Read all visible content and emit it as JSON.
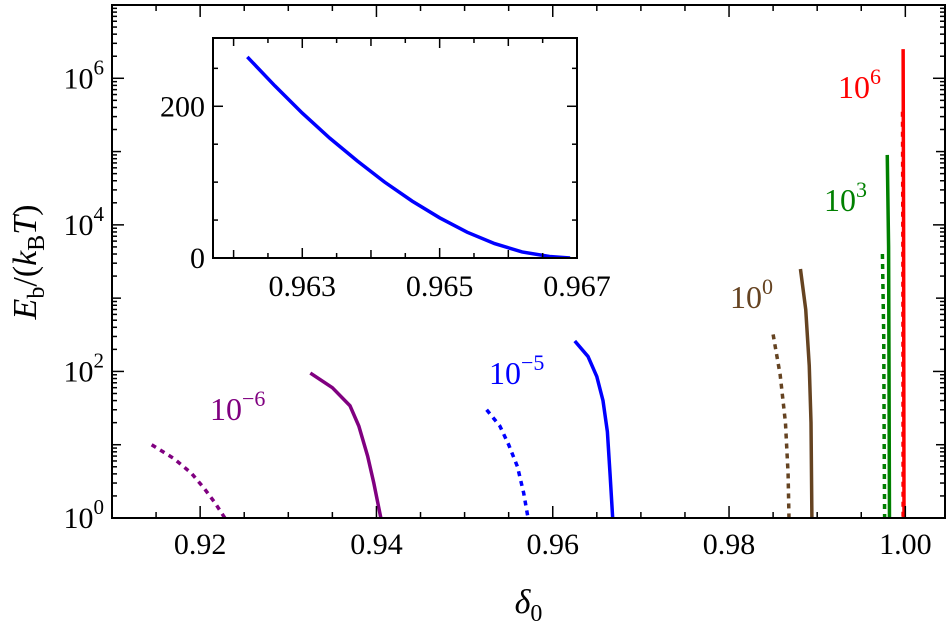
{
  "chart_data": [
    {
      "type": "line",
      "xlabel": "δ0",
      "ylabel": "Eb/(kBT)",
      "xlim": [
        0.91,
        1.0045
      ],
      "ylim": [
        1,
        10000000
      ],
      "yscale": "log",
      "grid": false,
      "x_ticks": [
        0.92,
        0.94,
        0.96,
        0.98,
        1.0
      ],
      "x_tick_labels": [
        "0.92",
        "0.94",
        "0.96",
        "0.98",
        "1.00"
      ],
      "y_ticks": [
        1,
        100,
        10000,
        1000000
      ],
      "y_tick_labels": [
        {
          "base": "10",
          "exp": "0"
        },
        {
          "base": "10",
          "exp": "2"
        },
        {
          "base": "10",
          "exp": "4"
        },
        {
          "base": "10",
          "exp": "6"
        }
      ],
      "series": [
        {
          "label_base": "10",
          "label_exp": "−6",
          "color": "#800080",
          "dash": false,
          "points": [
            [
              0.9325,
              95
            ],
            [
              0.935,
              60
            ],
            [
              0.937,
              34
            ],
            [
              0.938,
              18
            ],
            [
              0.939,
              7
            ],
            [
              0.9397,
              3
            ],
            [
              0.9405,
              1
            ]
          ]
        },
        {
          "color": "#800080",
          "dash": true,
          "points": [
            [
              0.9145,
              10
            ],
            [
              0.917,
              6.5
            ],
            [
              0.919,
              4.1
            ],
            [
              0.9205,
              2.5
            ],
            [
              0.9217,
              1.6
            ],
            [
              0.9228,
              1
            ]
          ]
        },
        {
          "label_base": "10",
          "label_exp": "−5",
          "color": "#0000ff",
          "dash": false,
          "points": [
            [
              0.9625,
              260
            ],
            [
              0.964,
              160
            ],
            [
              0.965,
              85
            ],
            [
              0.9657,
              40
            ],
            [
              0.9662,
              15
            ],
            [
              0.9665,
              4
            ],
            [
              0.9668,
              1
            ]
          ]
        },
        {
          "color": "#0000ff",
          "dash": true,
          "points": [
            [
              0.9525,
              30
            ],
            [
              0.954,
              18
            ],
            [
              0.955,
              10
            ],
            [
              0.956,
              5
            ],
            [
              0.9567,
              2.2
            ],
            [
              0.9572,
              1
            ]
          ]
        },
        {
          "label_base": "10",
          "label_exp": "0",
          "color": "#654321",
          "dash": false,
          "points": [
            [
              0.9881,
              2500
            ],
            [
              0.9887,
              700
            ],
            [
              0.9891,
              120
            ],
            [
              0.9893,
              20
            ],
            [
              0.9894,
              1
            ]
          ]
        },
        {
          "color": "#654321",
          "dash": true,
          "points": [
            [
              0.985,
              320
            ],
            [
              0.9858,
              90
            ],
            [
              0.9864,
              20
            ],
            [
              0.9867,
              4
            ],
            [
              0.9868,
              1
            ]
          ]
        },
        {
          "label_base": "10",
          "label_exp": "3",
          "color": "#008000",
          "dash": false,
          "points": [
            [
              0.99795,
              90000
            ],
            [
              0.9981,
              5000
            ],
            [
              0.99815,
              100
            ],
            [
              0.9982,
              1
            ]
          ]
        },
        {
          "color": "#008000",
          "dash": true,
          "points": [
            [
              0.9974,
              4000
            ],
            [
              0.99755,
              300
            ],
            [
              0.9976,
              10
            ],
            [
              0.99765,
              1
            ]
          ]
        },
        {
          "label_base": "10",
          "label_exp": "6",
          "color": "#ff0000",
          "dash": false,
          "points": [
            [
              0.99975,
              2500000
            ],
            [
              0.9998,
              10000
            ],
            [
              0.99985,
              1
            ]
          ]
        },
        {
          "color": "#ff0000",
          "dash": true,
          "points": [
            [
              0.99968,
              350000
            ],
            [
              0.99972,
              5000
            ],
            [
              0.99975,
              1
            ]
          ]
        }
      ]
    },
    {
      "type": "line",
      "xlim": [
        0.9617,
        0.967
      ],
      "ylim": [
        0,
        290
      ],
      "grid": false,
      "x_ticks": [
        0.963,
        0.965,
        0.967
      ],
      "x_tick_labels": [
        "0.963",
        "0.965",
        "0.967"
      ],
      "y_ticks": [
        0,
        200
      ],
      "y_tick_labels": [
        "0",
        "200"
      ],
      "series": [
        {
          "color": "#0000ff",
          "dash": false,
          "points": [
            [
              0.9622,
              265
            ],
            [
              0.9626,
              227
            ],
            [
              0.963,
              191
            ],
            [
              0.9634,
              158
            ],
            [
              0.9638,
              128
            ],
            [
              0.9642,
              100
            ],
            [
              0.9646,
              75
            ],
            [
              0.965,
              53
            ],
            [
              0.9654,
              34
            ],
            [
              0.9658,
              19
            ],
            [
              0.9662,
              8
            ],
            [
              0.9666,
              2
            ],
            [
              0.9669,
              0
            ]
          ]
        }
      ]
    }
  ]
}
